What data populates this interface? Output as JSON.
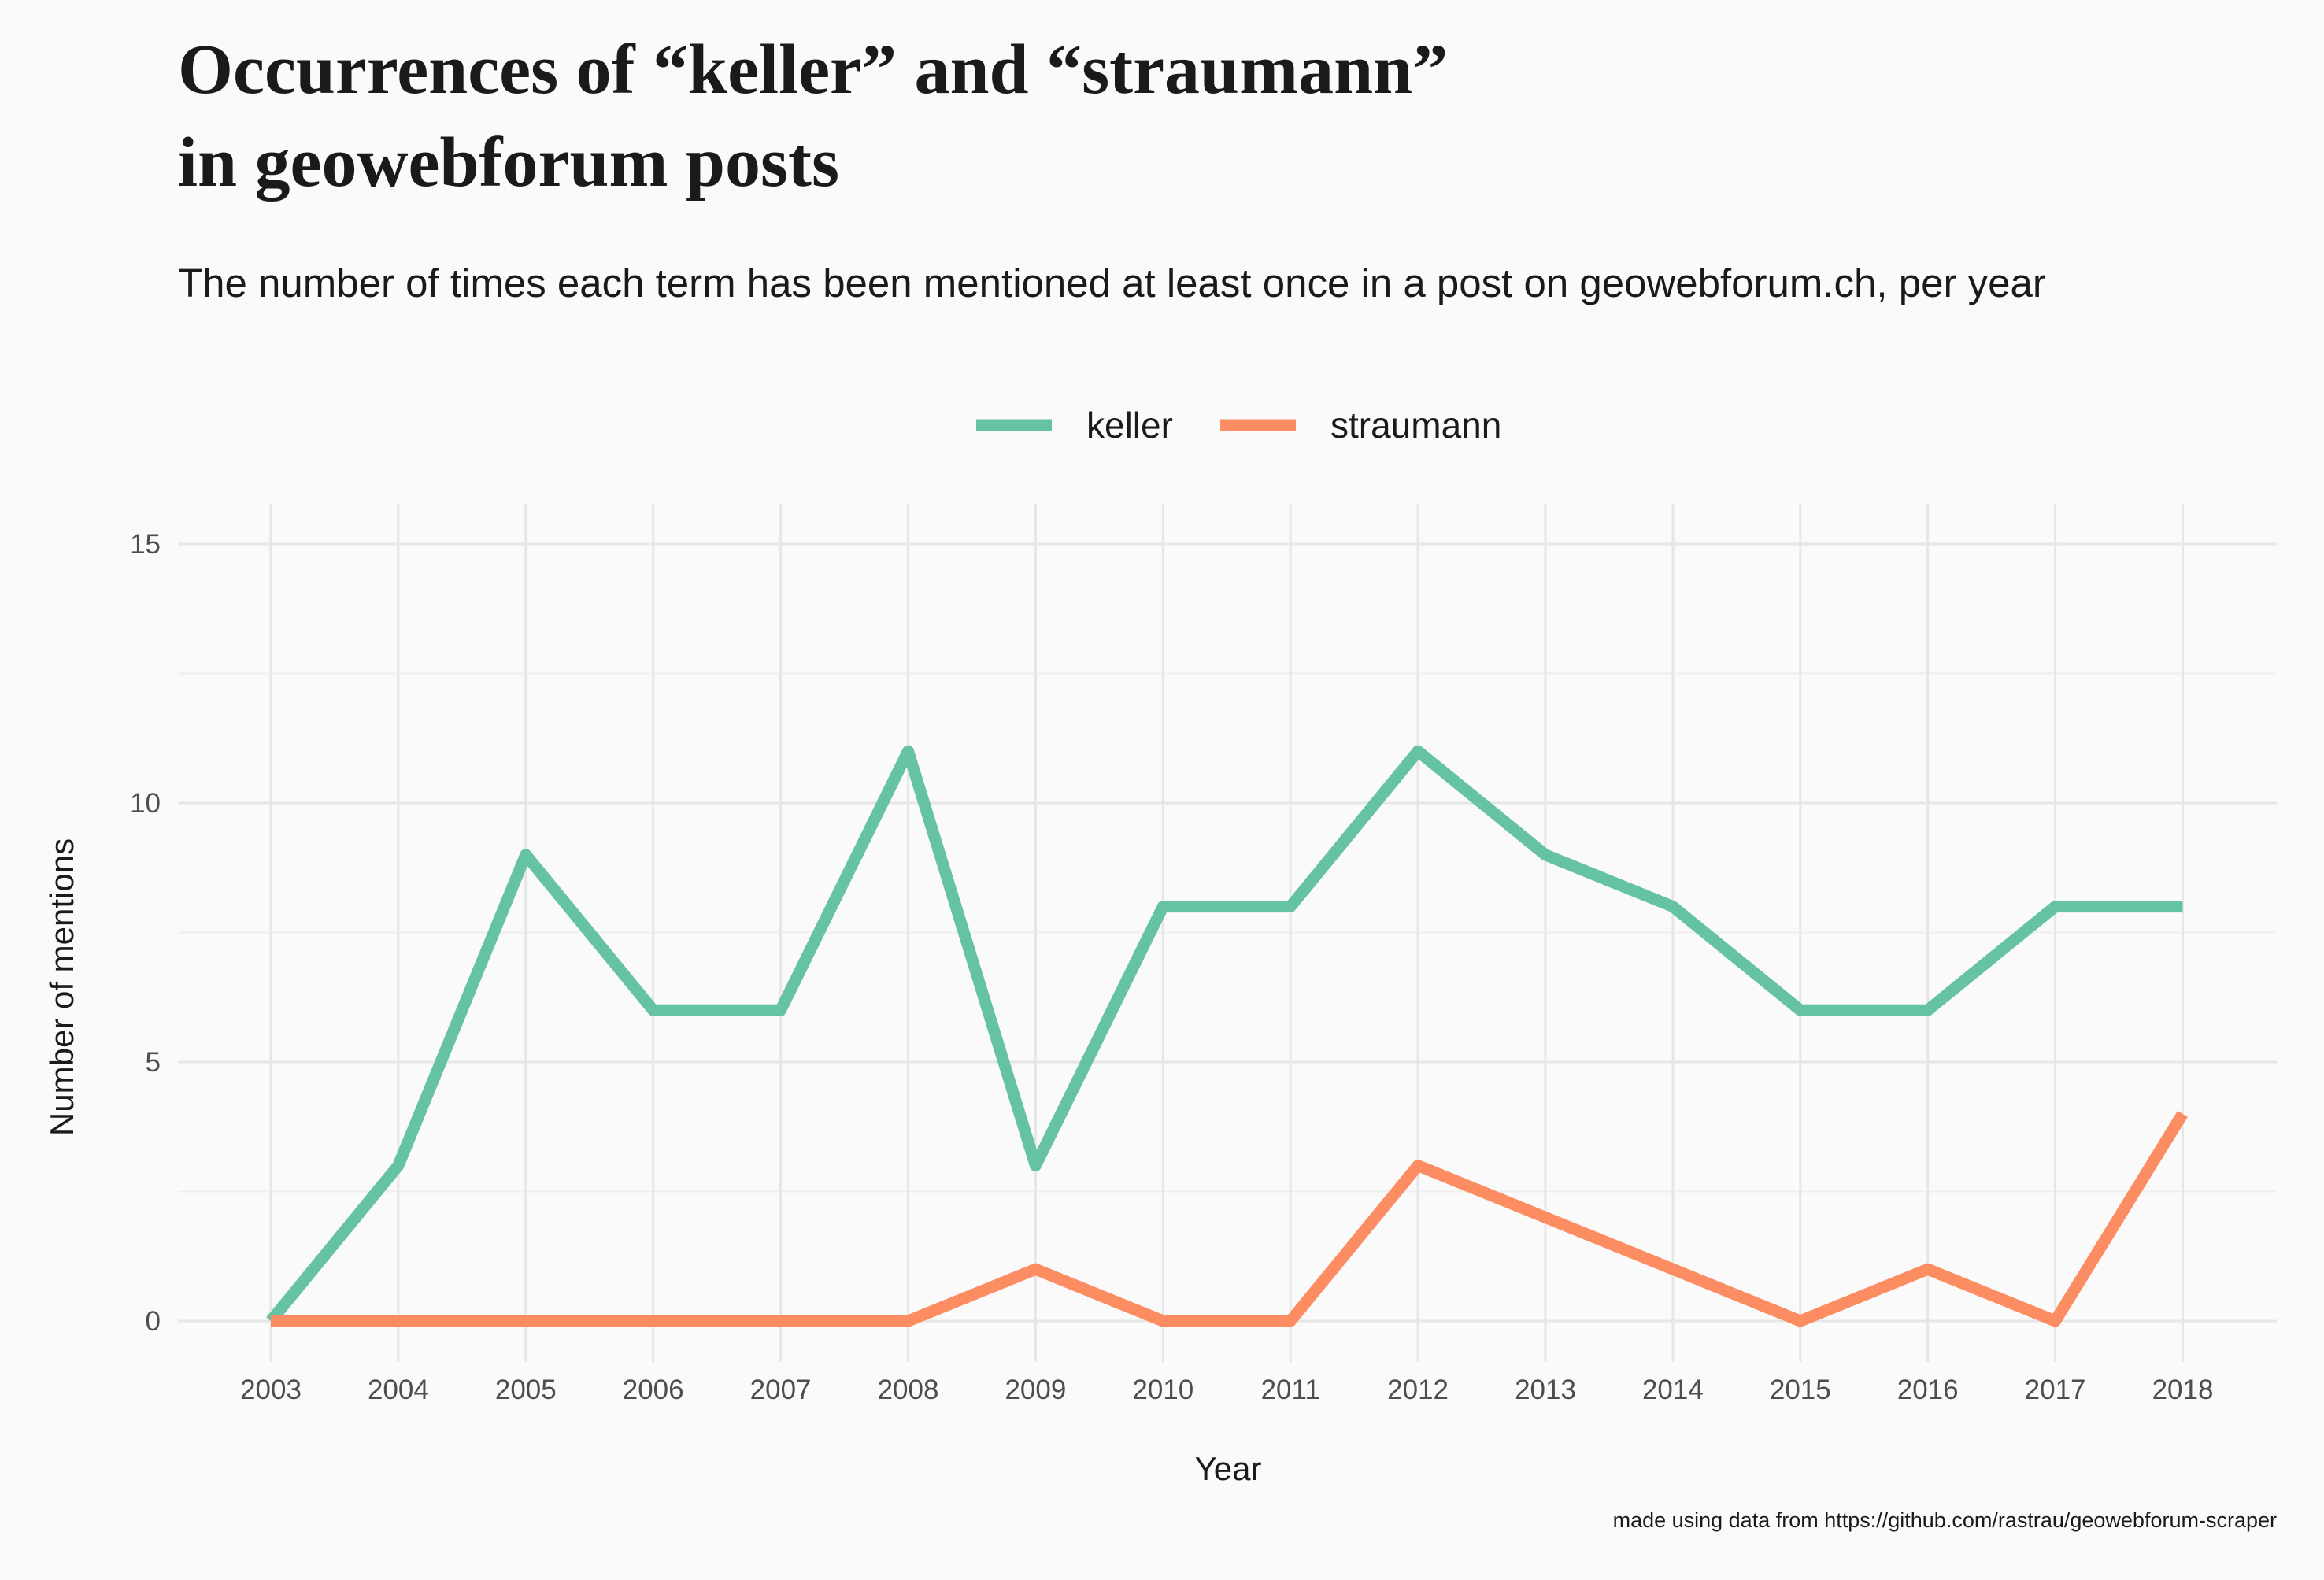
{
  "chart_data": {
    "type": "line",
    "title": [
      "Occurrences of “keller” and “straumann”",
      "in geowebforum posts"
    ],
    "subtitle": "The number of times each term has been mentioned at least once in a post on geowebforum.ch, per year",
    "xlabel": "Year",
    "ylabel": "Number of mentions",
    "caption": "made using data from https://github.com/rastrau/geowebforum-scraper",
    "x": [
      2003,
      2004,
      2005,
      2006,
      2007,
      2008,
      2009,
      2010,
      2011,
      2012,
      2013,
      2014,
      2015,
      2016,
      2017,
      2018
    ],
    "x_ticks": [
      "2003",
      "2004",
      "2005",
      "2006",
      "2007",
      "2008",
      "2009",
      "2010",
      "2011",
      "2012",
      "2013",
      "2014",
      "2015",
      "2016",
      "2017",
      "2018"
    ],
    "y_ticks": [
      "0",
      "5",
      "10",
      "15"
    ],
    "ylim": [
      0,
      15
    ],
    "grid": true,
    "legend_position": "top",
    "series": [
      {
        "name": "keller",
        "color": "#66c2a5",
        "values": [
          0,
          3,
          9,
          6,
          6,
          11,
          3,
          8,
          8,
          11,
          9,
          8,
          6,
          6,
          8,
          8
        ]
      },
      {
        "name": "straumann",
        "color": "#fc8d62",
        "values": [
          0,
          0,
          0,
          0,
          0,
          0,
          1,
          0,
          0,
          3,
          2,
          1,
          0,
          1,
          0,
          4
        ]
      }
    ]
  }
}
